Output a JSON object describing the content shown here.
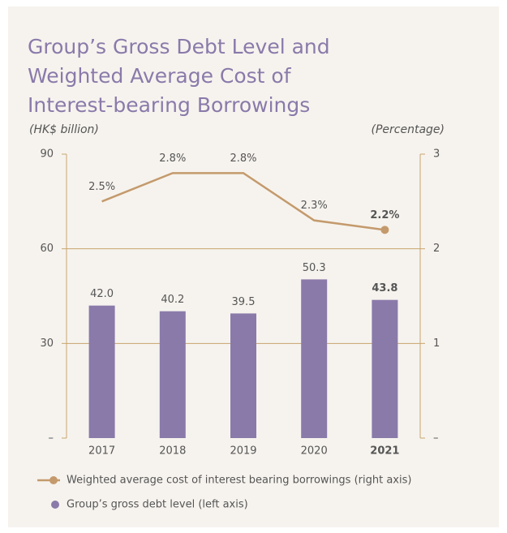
{
  "chart_data": {
    "type": "bar_line",
    "title": [
      "Group’s Gross Debt Level and",
      "Weighted Average Cost of",
      "Interest-bearing Borrowings"
    ],
    "y_label": "(HK$ billion)",
    "y2_label": "(Percentage)",
    "categories": [
      "2017",
      "2018",
      "2019",
      "2020",
      "2021"
    ],
    "series": [
      {
        "name": "Weighted average cost of interest bearing borrowings (right axis)",
        "type": "line",
        "axis": "y2",
        "color": "#c49a6c",
        "values": [
          2.5,
          2.8,
          2.8,
          2.3,
          2.2
        ],
        "value_labels": [
          "2.5%",
          "2.8%",
          "2.8%",
          "2.3%",
          "2.2%"
        ]
      },
      {
        "name": "Group’s gross debt level (left axis)",
        "type": "bar",
        "axis": "y",
        "color": "#8a7aaa",
        "values": [
          42.0,
          40.2,
          39.5,
          50.3,
          43.8
        ],
        "value_labels": [
          "42.0",
          "40.2",
          "39.5",
          "50.3",
          "43.8"
        ]
      }
    ],
    "ylim": [
      0,
      90
    ],
    "yticks": [
      {
        "value": 0,
        "label": "–"
      },
      30,
      60,
      90
    ],
    "y2lim": [
      0,
      3
    ],
    "y2ticks": [
      {
        "value": 0,
        "label": "–"
      },
      1,
      2,
      3
    ],
    "grid": true
  }
}
